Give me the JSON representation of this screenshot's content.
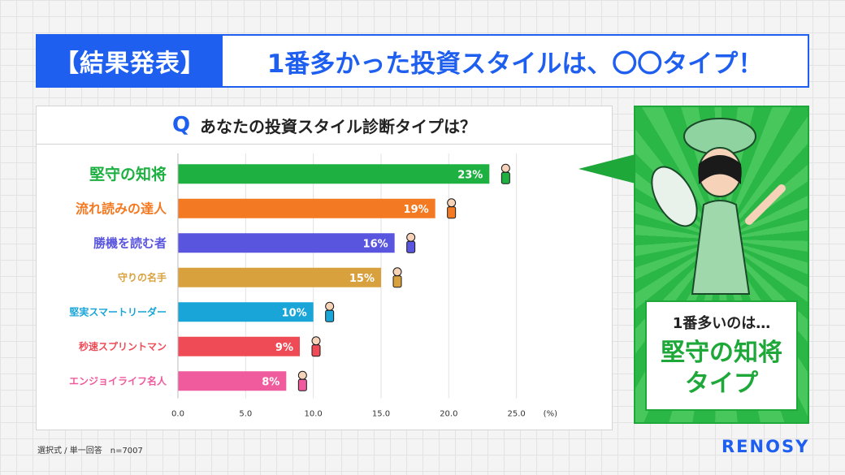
{
  "header": {
    "tag": "【結果発表】",
    "title": "1番多かった投資スタイルは、〇〇タイプ！"
  },
  "question": {
    "mark": "Q",
    "text": "あなたの投資スタイル診断タイプは？"
  },
  "result": {
    "lead": "1番多いのは…",
    "name": "堅守の知将",
    "suffix": "タイプ"
  },
  "footnote": "選択式 / 単一回答　n=7007",
  "brand": "RENOSY",
  "colors": {
    "accent_blue": "#1f5ff0",
    "accent_green": "#1fa83a"
  },
  "chart_data": {
    "type": "bar",
    "orientation": "horizontal",
    "categories": [
      "堅守の知将",
      "流れ読みの達人",
      "勝機を読む者",
      "守りの名手",
      "堅実スマートリーダー",
      "秒速スプリントマン",
      "エンジョイライフ名人"
    ],
    "values": [
      23,
      19,
      16,
      15,
      10,
      9,
      8
    ],
    "value_labels": [
      "23%",
      "19%",
      "16%",
      "15%",
      "10%",
      "9%",
      "8%"
    ],
    "colors": [
      "#1fb042",
      "#f37a23",
      "#5a55de",
      "#d9a13d",
      "#1aa5d8",
      "#ef4b57",
      "#ef5b9c"
    ],
    "xlim": [
      0,
      30
    ],
    "xticks": [
      "0.0",
      "5.0",
      "10.0",
      "15.0",
      "20.0",
      "25.0"
    ],
    "x_unit": "(%)",
    "grid": true
  }
}
